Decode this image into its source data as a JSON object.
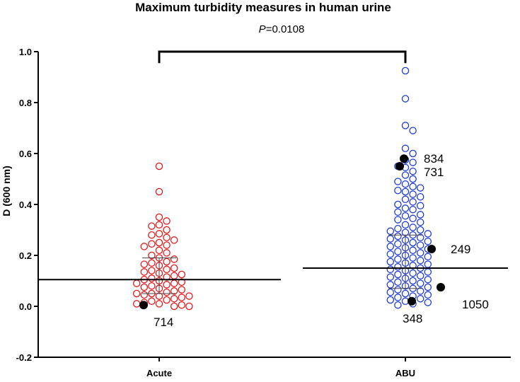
{
  "chart_data": {
    "type": "scatter",
    "title": "Maximum turbidity measures in human urine",
    "ylabel": "D (600 nm)",
    "xlabel": "",
    "ylim": [
      -0.2,
      1.0
    ],
    "yticks": [
      "-0.2",
      "0.0",
      "0.2",
      "0.4",
      "0.6",
      "0.8",
      "1.0"
    ],
    "yticks_values": [
      -0.2,
      0.0,
      0.2,
      0.4,
      0.6,
      0.8,
      1.0
    ],
    "categories": [
      "Acute",
      "ABU"
    ],
    "comparison": {
      "label_italic": "P",
      "label_rest": "=0.0108"
    },
    "series": [
      {
        "name": "Acute",
        "color": "#e31a1c",
        "mean": 0.105,
        "error_low": 0.05,
        "error_high": 0.19,
        "values": [
          0.55,
          0.45,
          0.35,
          0.335,
          0.32,
          0.315,
          0.3,
          0.285,
          0.28,
          0.27,
          0.26,
          0.25,
          0.245,
          0.24,
          0.235,
          0.22,
          0.21,
          0.2,
          0.19,
          0.185,
          0.175,
          0.17,
          0.165,
          0.16,
          0.15,
          0.145,
          0.14,
          0.135,
          0.13,
          0.125,
          0.12,
          0.115,
          0.11,
          0.105,
          0.1,
          0.095,
          0.09,
          0.09,
          0.085,
          0.08,
          0.075,
          0.07,
          0.065,
          0.06,
          0.055,
          0.05,
          0.05,
          0.045,
          0.04,
          0.04,
          0.035,
          0.03,
          0.025,
          0.02,
          0.015,
          0.01,
          0.01,
          0.005,
          0.0,
          0.0
        ],
        "highlighted": [
          {
            "label": "714",
            "value": 0.005
          }
        ]
      },
      {
        "name": "ABU",
        "color": "#1f3bd6",
        "mean": 0.15,
        "error_low": 0.07,
        "error_high": 0.28,
        "values": [
          0.925,
          0.815,
          0.71,
          0.69,
          0.62,
          0.6,
          0.575,
          0.565,
          0.55,
          0.545,
          0.53,
          0.515,
          0.5,
          0.49,
          0.48,
          0.47,
          0.465,
          0.455,
          0.45,
          0.44,
          0.43,
          0.42,
          0.41,
          0.4,
          0.395,
          0.385,
          0.38,
          0.37,
          0.36,
          0.355,
          0.345,
          0.34,
          0.33,
          0.32,
          0.31,
          0.305,
          0.3,
          0.295,
          0.29,
          0.285,
          0.28,
          0.275,
          0.27,
          0.265,
          0.26,
          0.255,
          0.25,
          0.245,
          0.24,
          0.235,
          0.23,
          0.225,
          0.22,
          0.215,
          0.21,
          0.205,
          0.2,
          0.195,
          0.19,
          0.185,
          0.18,
          0.175,
          0.17,
          0.165,
          0.16,
          0.155,
          0.15,
          0.145,
          0.14,
          0.135,
          0.13,
          0.125,
          0.12,
          0.115,
          0.11,
          0.105,
          0.1,
          0.095,
          0.09,
          0.085,
          0.08,
          0.075,
          0.07,
          0.065,
          0.06,
          0.055,
          0.05,
          0.045,
          0.04,
          0.035,
          0.03,
          0.025,
          0.02,
          0.015,
          0.01,
          0.005
        ],
        "highlighted": [
          {
            "label": "834",
            "value": 0.58
          },
          {
            "label": "731",
            "value": 0.55
          },
          {
            "label": "249",
            "value": 0.225
          },
          {
            "label": "1050",
            "value": 0.075
          },
          {
            "label": "348",
            "value": 0.02
          }
        ]
      }
    ]
  }
}
